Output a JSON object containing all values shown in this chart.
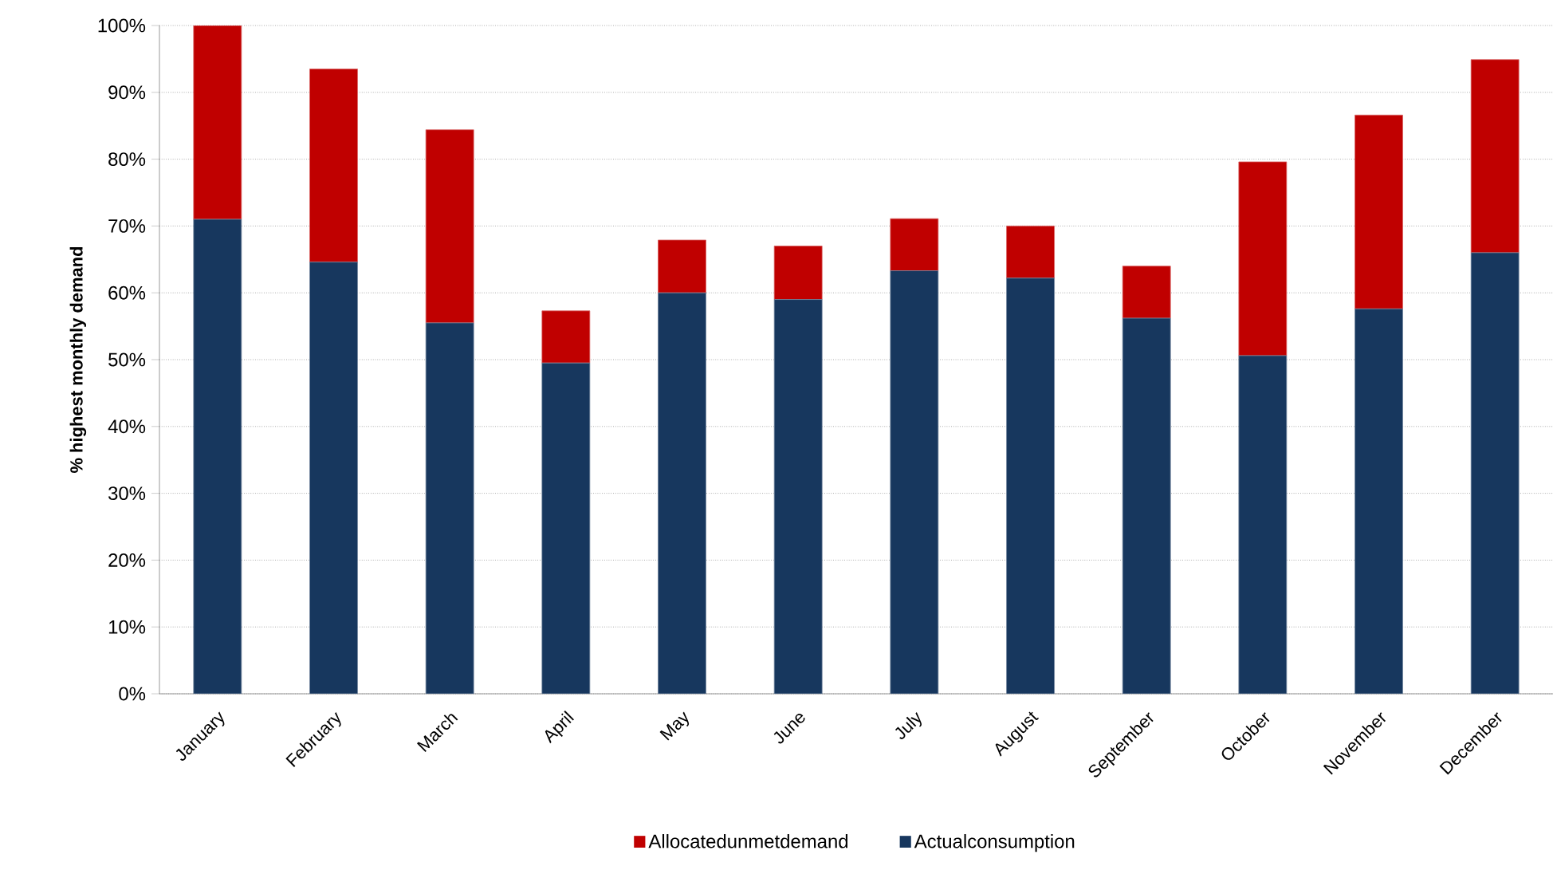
{
  "chart_data": {
    "type": "bar",
    "stacked": true,
    "ylabel": "% highest monthly demand",
    "categories": [
      "January",
      "February",
      "March",
      "April",
      "May",
      "June",
      "July",
      "August",
      "September",
      "October",
      "November",
      "December"
    ],
    "series": [
      {
        "name": "Actualconsumption",
        "color": "#17375e",
        "values": [
          71,
          64.6,
          55.5,
          49.5,
          60,
          59,
          63.3,
          62.2,
          56.2,
          50.6,
          57.6,
          66
        ]
      },
      {
        "name": "Allocatedunmetdemand",
        "color": "#c00000",
        "values": [
          29,
          28.9,
          28.9,
          7.8,
          7.9,
          8,
          7.8,
          7.8,
          7.8,
          29,
          29,
          28.9
        ]
      }
    ],
    "ylim": [
      0,
      100
    ],
    "yticks": [
      {
        "value": 0,
        "label": "0%"
      },
      {
        "value": 10,
        "label": "10%"
      },
      {
        "value": 20,
        "label": "20%"
      },
      {
        "value": 30,
        "label": "30%"
      },
      {
        "value": 40,
        "label": "40%"
      },
      {
        "value": 50,
        "label": "50%"
      },
      {
        "value": 60,
        "label": "60%"
      },
      {
        "value": 70,
        "label": "70%"
      },
      {
        "value": 80,
        "label": "80%"
      },
      {
        "value": 90,
        "label": "90%"
      },
      {
        "value": 100,
        "label": "100%"
      }
    ],
    "grid": "y",
    "legend": "bottom"
  }
}
